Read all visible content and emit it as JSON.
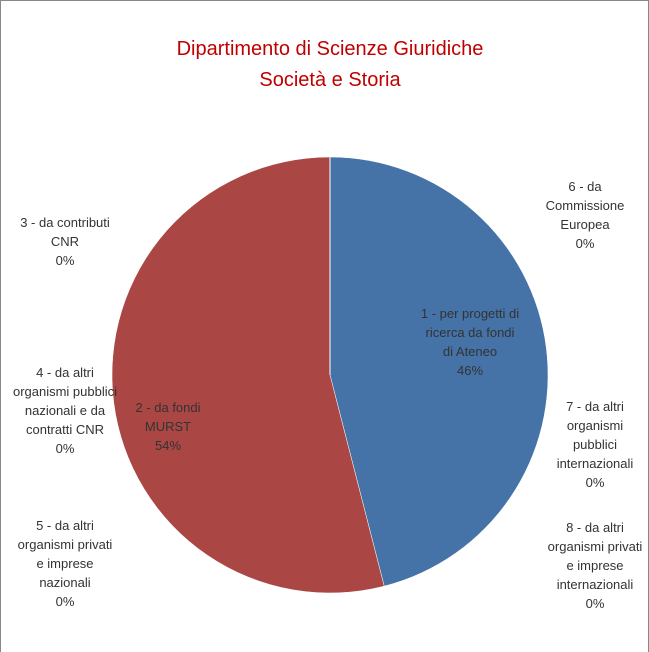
{
  "chart_data": {
    "type": "pie",
    "title": "Dipartimento di Scienze Giuridiche Società e Storia",
    "categories": [
      "1 - per progetti di ricerca da fondi di Ateneo",
      "2 - da fondi MURST",
      "3 - da contributi CNR",
      "4 - da altri organismi pubblici nazionali e da contratti CNR",
      "5 - da altri organismi privati e imprese nazionali",
      "6 - da Commissione Europea",
      "7 - da altri organismi pubblici internazionali",
      "8 - da altri organismi privati e imprese internazionali"
    ],
    "values": [
      46,
      54,
      0,
      0,
      0,
      0,
      0,
      0
    ],
    "value_labels": [
      "46%",
      "54%",
      "0%",
      "0%",
      "0%",
      "0%",
      "0%",
      "0%"
    ],
    "colors": [
      "#4572a7",
      "#aa4643",
      "#89a54e",
      "#71588f",
      "#4198af",
      "#db843d",
      "#93a9cf",
      "#d19392"
    ]
  }
}
